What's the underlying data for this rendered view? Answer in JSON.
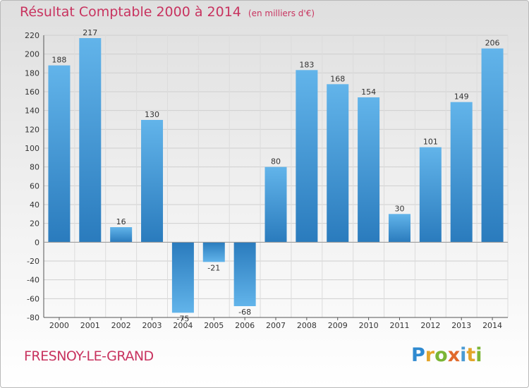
{
  "header": {
    "title": "Résultat Comptable 2000 à 2014",
    "subtitle": "(en milliers d'€)"
  },
  "footer": {
    "town": "FRESNOY-LE-GRAND",
    "logo_text": "Proxiti"
  },
  "colors": {
    "accent": "#c8335f",
    "bar_light": "#62b4ea",
    "bar_dark": "#2a7bbd"
  },
  "chart_data": {
    "type": "bar",
    "title": "Résultat Comptable 2000 à 2014",
    "subtitle": "(en milliers d'€)",
    "categories": [
      "2000",
      "2001",
      "2002",
      "2003",
      "2004",
      "2005",
      "2006",
      "2007",
      "2008",
      "2009",
      "2010",
      "2011",
      "2012",
      "2013",
      "2014"
    ],
    "values": [
      188,
      217,
      16,
      130,
      -75,
      -21,
      -68,
      80,
      183,
      168,
      154,
      30,
      101,
      149,
      206
    ],
    "ylim": [
      -80,
      220
    ],
    "yticks": [
      -80,
      -60,
      -40,
      -20,
      0,
      20,
      40,
      60,
      80,
      100,
      120,
      140,
      160,
      180,
      200,
      220
    ],
    "grid": true,
    "xlabel": "",
    "ylabel": ""
  }
}
